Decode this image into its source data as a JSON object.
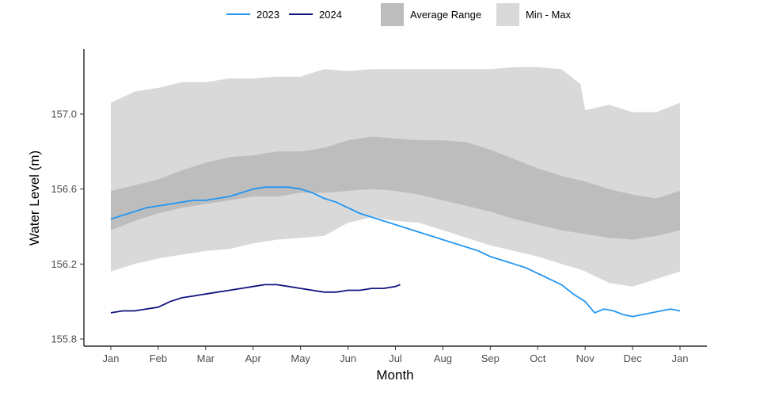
{
  "chart_data": {
    "type": "line",
    "title": "",
    "xlabel": "Month",
    "ylabel": "Water Level (m)",
    "x_ticks": [
      "Jan",
      "Feb",
      "Mar",
      "Apr",
      "May",
      "Jun",
      "Jul",
      "Aug",
      "Sep",
      "Oct",
      "Nov",
      "Dec",
      "Jan"
    ],
    "y_ticks": [
      155.8,
      156.2,
      156.6,
      157.0
    ],
    "xlim": [
      0,
      12
    ],
    "ylim": [
      155.78,
      157.27
    ],
    "grid": false,
    "legend_position": "top",
    "legend": [
      {
        "label": "2023",
        "kind": "line",
        "color": "#2196f3"
      },
      {
        "label": "2024",
        "kind": "line",
        "color": "#131380"
      },
      {
        "label": "Average Range",
        "kind": "fill",
        "color": "#bdbdbd"
      },
      {
        "label": "Min - Max",
        "kind": "fill",
        "color": "#d9d9d9"
      }
    ],
    "bands": [
      {
        "name": "Min - Max",
        "color": "#d9d9d9",
        "x": [
          0,
          0.5,
          1,
          1.5,
          2,
          2.5,
          3,
          3.5,
          4,
          4.5,
          5,
          5.5,
          6,
          6.5,
          7,
          7.5,
          8,
          8.5,
          9,
          9.5,
          9.9,
          10,
          10.5,
          11,
          11.5,
          12
        ],
        "upper": [
          157.06,
          157.12,
          157.14,
          157.17,
          157.17,
          157.19,
          157.19,
          157.2,
          157.2,
          157.24,
          157.23,
          157.24,
          157.24,
          157.24,
          157.24,
          157.24,
          157.24,
          157.25,
          157.25,
          157.24,
          157.16,
          157.02,
          157.05,
          157.01,
          157.01,
          157.06
        ],
        "lower": [
          156.16,
          156.2,
          156.23,
          156.25,
          156.27,
          156.28,
          156.31,
          156.33,
          156.34,
          156.35,
          156.42,
          156.45,
          156.43,
          156.42,
          156.38,
          156.34,
          156.3,
          156.27,
          156.24,
          156.2,
          156.17,
          156.16,
          156.1,
          156.08,
          156.12,
          156.16
        ]
      },
      {
        "name": "Average Range",
        "color": "#bdbdbd",
        "x": [
          0,
          0.5,
          1,
          1.5,
          2,
          2.5,
          3,
          3.5,
          4,
          4.5,
          5,
          5.5,
          6,
          6.5,
          7,
          7.5,
          8,
          8.5,
          9,
          9.5,
          10,
          10.5,
          11,
          11.5,
          12
        ],
        "upper": [
          156.59,
          156.62,
          156.65,
          156.7,
          156.74,
          156.77,
          156.78,
          156.8,
          156.8,
          156.82,
          156.86,
          156.88,
          156.87,
          156.86,
          156.86,
          156.85,
          156.81,
          156.76,
          156.71,
          156.67,
          156.64,
          156.6,
          156.57,
          156.55,
          156.59
        ],
        "lower": [
          156.38,
          156.43,
          156.47,
          156.5,
          156.52,
          156.54,
          156.56,
          156.56,
          156.58,
          156.58,
          156.59,
          156.6,
          156.59,
          156.57,
          156.54,
          156.51,
          156.48,
          156.44,
          156.41,
          156.38,
          156.36,
          156.34,
          156.33,
          156.35,
          156.38
        ]
      }
    ],
    "series": [
      {
        "name": "2023",
        "color": "#2196f3",
        "x": [
          0,
          0.25,
          0.5,
          0.75,
          1,
          1.25,
          1.5,
          1.75,
          2,
          2.25,
          2.5,
          2.75,
          3,
          3.25,
          3.5,
          3.75,
          4,
          4.25,
          4.5,
          4.75,
          5,
          5.25,
          5.5,
          5.75,
          6,
          6.25,
          6.5,
          6.75,
          7,
          7.25,
          7.5,
          7.75,
          8,
          8.25,
          8.5,
          8.75,
          9,
          9.25,
          9.5,
          9.75,
          10,
          10.2,
          10.4,
          10.6,
          10.8,
          11,
          11.2,
          11.4,
          11.6,
          11.8,
          12
        ],
        "values": [
          156.44,
          156.46,
          156.48,
          156.5,
          156.51,
          156.52,
          156.53,
          156.54,
          156.54,
          156.55,
          156.56,
          156.58,
          156.6,
          156.61,
          156.61,
          156.61,
          156.6,
          156.58,
          156.55,
          156.53,
          156.5,
          156.47,
          156.45,
          156.43,
          156.41,
          156.39,
          156.37,
          156.35,
          156.33,
          156.31,
          156.29,
          156.27,
          156.24,
          156.22,
          156.2,
          156.18,
          156.15,
          156.12,
          156.09,
          156.04,
          156.0,
          155.94,
          155.96,
          155.95,
          155.93,
          155.92,
          155.93,
          155.94,
          155.95,
          155.96,
          155.95
        ]
      },
      {
        "name": "2024",
        "color": "#131380",
        "x": [
          0,
          0.25,
          0.5,
          0.75,
          1,
          1.25,
          1.5,
          1.75,
          2,
          2.25,
          2.5,
          2.75,
          3,
          3.25,
          3.5,
          3.75,
          4,
          4.25,
          4.5,
          4.75,
          5,
          5.25,
          5.5,
          5.75,
          6,
          6.1
        ],
        "values": [
          155.94,
          155.95,
          155.95,
          155.96,
          155.97,
          156.0,
          156.02,
          156.03,
          156.04,
          156.05,
          156.06,
          156.07,
          156.08,
          156.09,
          156.09,
          156.08,
          156.07,
          156.06,
          156.05,
          156.05,
          156.06,
          156.06,
          156.07,
          156.07,
          156.08,
          156.09
        ]
      }
    ]
  }
}
